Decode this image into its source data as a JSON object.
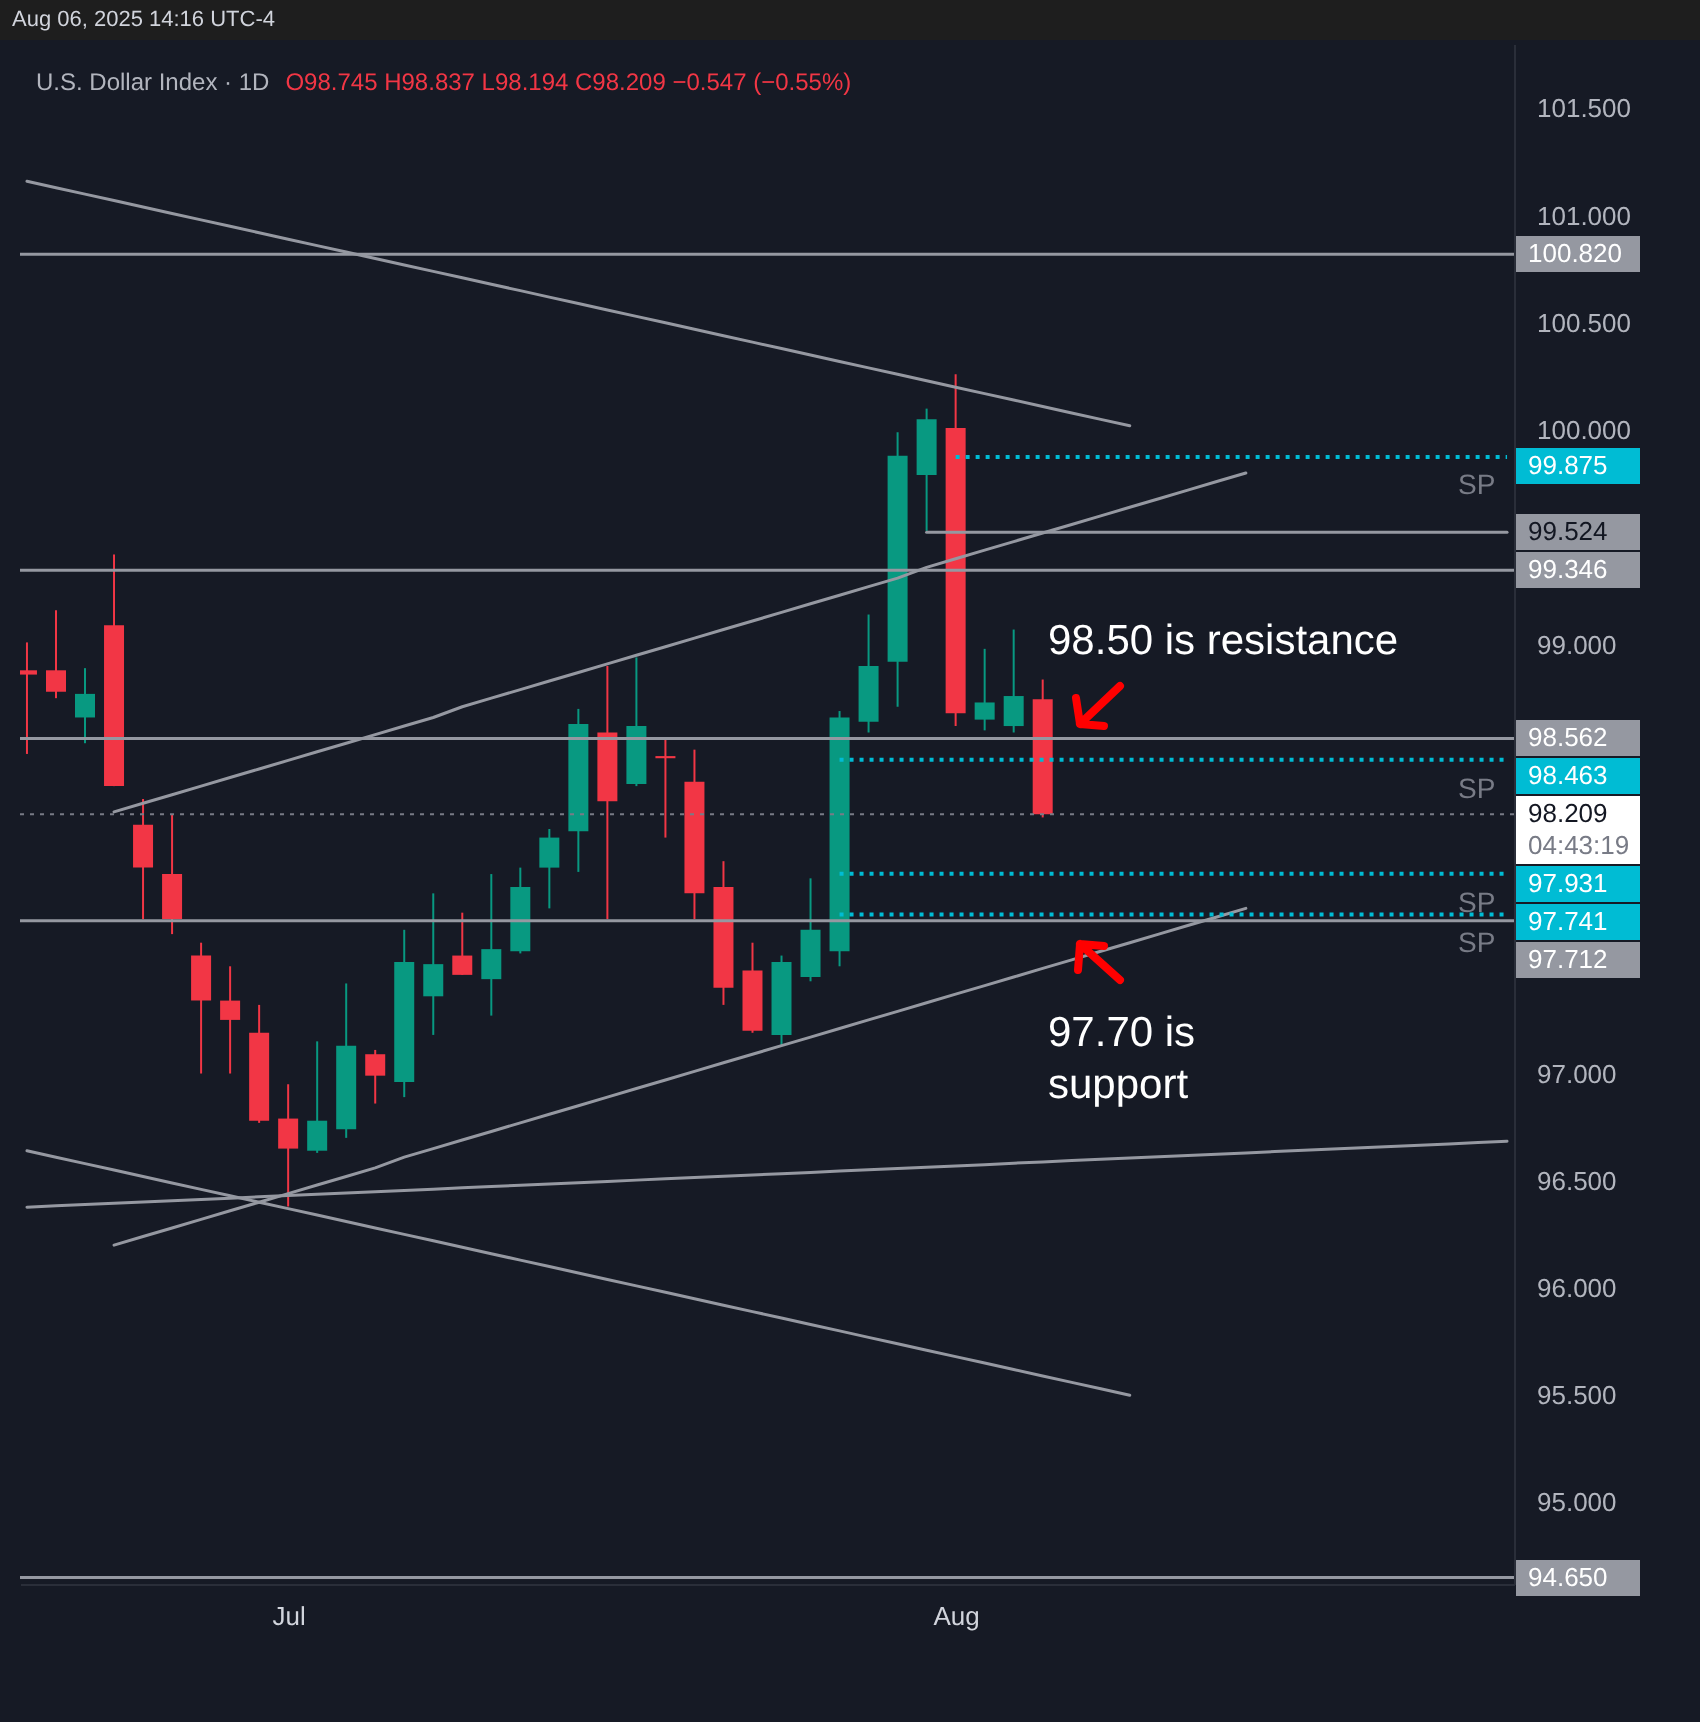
{
  "chart_data": {
    "type": "candlestick",
    "title": "U.S. Dollar Index · 1D",
    "subtitle": "O98.745 H98.837 L98.194 C98.209 −0.547 (−0.55%)",
    "categories": [
      null,
      null,
      null,
      null,
      null,
      null,
      null,
      null,
      null,
      "Jul",
      null,
      null,
      null,
      null,
      null,
      null,
      null,
      null,
      null,
      null,
      null,
      null,
      null,
      null,
      null,
      null,
      null,
      null,
      null,
      null,
      null,
      null,
      "Aug",
      null,
      null,
      null,
      null,
      null,
      null,
      null,
      null,
      null,
      null,
      null,
      null,
      null,
      null,
      null,
      null,
      null,
      null,
      null
    ],
    "ohlc": [
      [
        98.88,
        99.01,
        98.49,
        98.86
      ],
      [
        98.88,
        99.16,
        98.75,
        98.78
      ],
      [
        98.66,
        98.89,
        98.54,
        98.77
      ],
      [
        99.09,
        99.42,
        98.34,
        98.34
      ],
      [
        98.16,
        98.28,
        97.72,
        97.96
      ],
      [
        97.93,
        98.21,
        97.65,
        97.72
      ],
      [
        97.55,
        97.61,
        97.0,
        97.34
      ],
      [
        97.34,
        97.5,
        97.0,
        97.25
      ],
      [
        97.19,
        97.32,
        96.77,
        96.78
      ],
      [
        96.79,
        96.95,
        96.38,
        96.65
      ],
      [
        96.64,
        97.15,
        96.63,
        96.78
      ],
      [
        96.74,
        97.42,
        96.7,
        97.13
      ],
      [
        97.09,
        97.11,
        96.86,
        96.99
      ],
      [
        96.96,
        97.67,
        96.89,
        97.52
      ],
      [
        97.36,
        97.84,
        97.18,
        97.51
      ],
      [
        97.55,
        97.75,
        97.46,
        97.46
      ],
      [
        97.44,
        97.93,
        97.27,
        97.58
      ],
      [
        97.57,
        97.96,
        97.56,
        97.87
      ],
      [
        97.96,
        98.14,
        97.77,
        98.1
      ],
      [
        98.13,
        98.7,
        97.94,
        98.63
      ],
      [
        98.59,
        98.9,
        97.72,
        98.27
      ],
      [
        98.35,
        98.94,
        98.34,
        98.62
      ],
      [
        98.48,
        98.56,
        98.1,
        98.47
      ],
      [
        98.36,
        98.51,
        97.72,
        97.84
      ],
      [
        97.87,
        97.99,
        97.32,
        97.4
      ],
      [
        97.48,
        97.61,
        97.19,
        97.2
      ],
      [
        97.18,
        97.55,
        97.13,
        97.52
      ],
      [
        97.45,
        97.91,
        97.43,
        97.67
      ],
      [
        97.57,
        98.69,
        97.5,
        98.66
      ],
      [
        98.64,
        99.14,
        98.59,
        98.9
      ],
      [
        98.92,
        99.99,
        98.71,
        99.88
      ],
      [
        99.79,
        100.1,
        99.53,
        100.05
      ],
      [
        100.01,
        100.26,
        98.62,
        98.68
      ],
      [
        98.65,
        98.98,
        98.6,
        98.73
      ],
      [
        98.62,
        99.07,
        98.59,
        98.76
      ],
      [
        98.745,
        98.837,
        98.194,
        98.209
      ],
      null,
      null,
      null,
      null,
      null,
      null,
      null,
      null,
      null,
      null,
      null,
      null,
      null,
      null,
      null,
      null
    ],
    "colors": [
      "#f23645",
      "#f23645",
      "#089981",
      "#f23645",
      "#f23645",
      "#f23645",
      "#f23645",
      "#f23645",
      "#f23645",
      "#f23645",
      "#089981",
      "#089981",
      "#f23645",
      "#089981",
      "#089981",
      "#f23645",
      "#089981",
      "#089981",
      "#089981",
      "#089981",
      "#f23645",
      "#089981",
      "#f23645",
      "#f23645",
      "#f23645",
      "#f23645",
      "#089981",
      "#089981",
      "#089981",
      "#089981",
      "#089981",
      "#089981",
      "#f23645",
      "#089981",
      "#089981",
      "#f23645",
      null,
      null,
      null,
      null,
      null,
      null,
      null,
      null,
      null,
      null,
      null,
      null,
      null,
      null,
      null,
      null
    ],
    "ylim": [
      94.62,
      101.8
    ],
    "yticks": [
      {
        "value": 95,
        "label": "95.000"
      },
      {
        "value": 95.5,
        "label": "95.500"
      },
      {
        "value": 96,
        "label": "96.000"
      },
      {
        "value": 96.5,
        "label": "96.500"
      },
      {
        "value": 97,
        "label": "97.000"
      },
      {
        "value": 99,
        "label": "99.000"
      },
      {
        "value": 100,
        "label": "100.000"
      },
      {
        "value": 100.5,
        "label": "100.500"
      },
      {
        "value": 101,
        "label": "101.000"
      },
      {
        "value": 101.5,
        "label": "101.500"
      }
    ],
    "series": [
      {
        "type": "line",
        "color": "#9598a1",
        "line_style": "solid",
        "values": [
          101.16,
          101.13,
          101.1,
          101.07,
          101.04,
          101.01,
          100.98,
          100.95,
          100.92,
          100.89,
          100.86,
          100.83,
          100.8,
          100.77,
          100.74,
          100.71,
          100.68,
          100.65,
          100.62,
          100.59,
          100.56,
          100.53,
          100.5,
          100.47,
          100.44,
          100.41,
          100.38,
          100.35,
          100.32,
          100.29,
          100.26,
          100.23,
          100.2,
          100.17,
          100.14,
          100.11,
          100.08,
          100.05,
          100.02,
          null,
          null,
          null,
          null,
          null,
          null,
          null,
          null,
          null,
          null,
          null,
          null,
          null
        ]
      },
      {
        "type": "line",
        "color": "#9598a1",
        "line_style": "solid",
        "values": [
          null,
          null,
          null,
          98.22,
          98.26,
          98.3,
          98.34,
          98.38,
          98.42,
          98.46,
          98.5,
          98.54,
          98.58,
          98.62,
          98.66,
          98.71,
          98.75,
          98.79,
          98.83,
          98.87,
          98.91,
          98.95,
          98.99,
          99.03,
          99.07,
          99.11,
          99.15,
          99.19,
          99.23,
          99.27,
          99.31,
          99.36,
          99.4,
          99.44,
          99.48,
          99.52,
          99.56,
          99.6,
          99.64,
          99.68,
          99.72,
          99.76,
          99.8,
          null,
          null,
          null,
          null,
          null,
          null,
          null,
          null,
          null
        ]
      },
      {
        "type": "line",
        "color": "#9598a1",
        "line_style": "solid",
        "values": [
          null,
          null,
          null,
          96.2,
          96.24,
          96.28,
          96.32,
          96.36,
          96.4,
          96.44,
          96.48,
          96.52,
          96.56,
          96.61,
          96.65,
          96.69,
          96.73,
          96.77,
          96.81,
          96.85,
          96.89,
          96.93,
          96.97,
          97.01,
          97.05,
          97.09,
          97.13,
          97.17,
          97.21,
          97.25,
          97.29,
          97.33,
          97.37,
          97.41,
          97.45,
          97.49,
          97.53,
          97.57,
          97.61,
          97.65,
          97.69,
          97.73,
          97.77,
          null,
          null,
          null,
          null,
          null,
          null,
          null,
          null,
          null
        ]
      },
      {
        "type": "line",
        "color": "#9598a1",
        "line_style": "solid",
        "values": [
          96.377,
          96.383,
          96.389,
          96.395,
          96.401,
          96.407,
          96.413,
          96.419,
          96.425,
          96.431,
          96.437,
          96.443,
          96.449,
          96.455,
          96.461,
          96.467,
          96.473,
          96.479,
          96.485,
          96.491,
          96.497,
          96.503,
          96.509,
          96.515,
          96.521,
          96.527,
          96.533,
          96.539,
          96.545,
          96.551,
          96.557,
          96.563,
          96.569,
          96.575,
          96.582,
          96.588,
          96.594,
          96.6,
          96.606,
          96.612,
          96.618,
          96.624,
          96.63,
          96.636,
          96.642,
          96.648,
          96.654,
          96.66,
          96.666,
          96.672,
          96.678,
          96.684
        ]
      },
      {
        "type": "line",
        "color": "#9598a1",
        "line_style": "solid",
        "values": [
          96.64,
          96.61,
          96.58,
          96.55,
          96.52,
          96.49,
          96.46,
          96.43,
          96.4,
          96.37,
          96.34,
          96.31,
          96.28,
          96.25,
          96.22,
          96.19,
          96.16,
          96.13,
          96.1,
          96.07,
          96.04,
          96.01,
          95.98,
          95.95,
          95.92,
          95.89,
          95.86,
          95.83,
          95.8,
          95.77,
          95.74,
          95.71,
          95.68,
          95.65,
          95.62,
          95.59,
          95.56,
          95.53,
          95.5,
          null,
          null,
          null,
          null,
          null,
          null,
          null,
          null,
          null,
          null,
          null,
          null,
          null
        ]
      },
      {
        "type": "line",
        "color": "#9598a1",
        "line_style": "solid",
        "values": [
          null,
          null,
          null,
          null,
          null,
          null,
          null,
          null,
          null,
          null,
          null,
          null,
          null,
          null,
          null,
          null,
          null,
          null,
          null,
          null,
          null,
          null,
          null,
          null,
          null,
          null,
          null,
          null,
          null,
          null,
          null,
          99.524,
          99.524,
          99.524,
          99.524,
          99.524,
          99.524,
          99.524,
          99.524,
          99.524,
          99.524,
          99.524,
          99.524,
          99.524,
          99.524,
          99.524,
          99.524,
          99.524,
          99.524,
          99.524,
          99.524,
          99.524
        ],
        "value_labels": [
          null,
          null,
          null,
          null,
          null,
          null,
          null,
          null,
          null,
          null,
          null,
          null,
          null,
          null,
          null,
          null,
          null,
          null,
          null,
          null,
          null,
          null,
          null,
          null,
          null,
          null,
          null,
          null,
          null,
          null,
          null,
          null,
          null,
          null,
          null,
          null,
          null,
          null,
          null,
          null,
          null,
          null,
          null,
          null,
          null,
          null,
          null,
          null,
          null,
          null,
          null,
          "99.524"
        ]
      },
      {
        "type": "line",
        "color": "#00bcd4",
        "line_style": "dotted",
        "values": [
          null,
          null,
          null,
          null,
          null,
          null,
          null,
          null,
          null,
          null,
          null,
          null,
          null,
          null,
          null,
          null,
          null,
          null,
          null,
          null,
          null,
          null,
          null,
          null,
          null,
          null,
          null,
          null,
          null,
          null,
          null,
          null,
          99.875,
          99.875,
          99.875,
          99.875,
          99.875,
          99.875,
          99.875,
          99.875,
          99.875,
          99.875,
          99.875,
          99.875,
          99.875,
          99.875,
          99.875,
          99.875,
          99.875,
          99.875,
          99.875,
          99.875
        ],
        "value_labels": [
          null,
          null,
          null,
          null,
          null,
          null,
          null,
          null,
          null,
          null,
          null,
          null,
          null,
          null,
          null,
          null,
          null,
          null,
          null,
          null,
          null,
          null,
          null,
          null,
          null,
          null,
          null,
          null,
          null,
          null,
          null,
          null,
          null,
          null,
          null,
          null,
          null,
          null,
          null,
          null,
          null,
          null,
          null,
          null,
          null,
          null,
          null,
          null,
          null,
          null,
          null,
          "99.875"
        ]
      },
      {
        "type": "line",
        "color": "#00bcd4",
        "line_style": "dotted",
        "values": [
          null,
          null,
          null,
          null,
          null,
          null,
          null,
          null,
          null,
          null,
          null,
          null,
          null,
          null,
          null,
          null,
          null,
          null,
          null,
          null,
          null,
          null,
          null,
          null,
          null,
          null,
          null,
          null,
          98.463,
          98.463,
          98.463,
          98.463,
          98.463,
          98.463,
          98.463,
          98.463,
          98.463,
          98.463,
          98.463,
          98.463,
          98.463,
          98.463,
          98.463,
          98.463,
          98.463,
          98.463,
          98.463,
          98.463,
          98.463,
          98.463,
          98.463,
          98.463
        ],
        "value_labels": [
          null,
          null,
          null,
          null,
          null,
          null,
          null,
          null,
          null,
          null,
          null,
          null,
          null,
          null,
          null,
          null,
          null,
          null,
          null,
          null,
          null,
          null,
          null,
          null,
          null,
          null,
          null,
          null,
          null,
          null,
          null,
          null,
          null,
          null,
          null,
          null,
          null,
          null,
          null,
          null,
          null,
          null,
          null,
          null,
          null,
          null,
          null,
          null,
          null,
          null,
          null,
          "98.463"
        ]
      },
      {
        "type": "line",
        "color": "#00bcd4",
        "line_style": "dotted",
        "values": [
          null,
          null,
          null,
          null,
          null,
          null,
          null,
          null,
          null,
          null,
          null,
          null,
          null,
          null,
          null,
          null,
          null,
          null,
          null,
          null,
          null,
          null,
          null,
          null,
          null,
          null,
          null,
          null,
          97.931,
          97.931,
          97.931,
          97.931,
          97.931,
          97.931,
          97.931,
          97.931,
          97.931,
          97.931,
          97.931,
          97.931,
          97.931,
          97.931,
          97.931,
          97.931,
          97.931,
          97.931,
          97.931,
          97.931,
          97.931,
          97.931,
          97.931,
          97.931
        ],
        "value_labels": [
          null,
          null,
          null,
          null,
          null,
          null,
          null,
          null,
          null,
          null,
          null,
          null,
          null,
          null,
          null,
          null,
          null,
          null,
          null,
          null,
          null,
          null,
          null,
          null,
          null,
          null,
          null,
          null,
          null,
          null,
          null,
          null,
          null,
          null,
          null,
          null,
          null,
          null,
          null,
          null,
          null,
          null,
          null,
          null,
          null,
          null,
          null,
          null,
          null,
          null,
          null,
          "97.931"
        ]
      },
      {
        "type": "line",
        "color": "#00bcd4",
        "line_style": "dotted",
        "values": [
          null,
          null,
          null,
          null,
          null,
          null,
          null,
          null,
          null,
          null,
          null,
          null,
          null,
          null,
          null,
          null,
          null,
          null,
          null,
          null,
          null,
          null,
          null,
          null,
          null,
          null,
          null,
          null,
          97.741,
          97.741,
          97.741,
          97.741,
          97.741,
          97.741,
          97.741,
          97.741,
          97.741,
          97.741,
          97.741,
          97.741,
          97.741,
          97.741,
          97.741,
          97.741,
          97.741,
          97.741,
          97.741,
          97.741,
          97.741,
          97.741,
          97.741,
          97.741
        ],
        "value_labels": [
          null,
          null,
          null,
          null,
          null,
          null,
          null,
          null,
          null,
          null,
          null,
          null,
          null,
          null,
          null,
          null,
          null,
          null,
          null,
          null,
          null,
          null,
          null,
          null,
          null,
          null,
          null,
          null,
          null,
          null,
          null,
          null,
          null,
          null,
          null,
          null,
          null,
          null,
          null,
          null,
          null,
          null,
          null,
          null,
          null,
          null,
          null,
          null,
          null,
          null,
          null,
          "97.741"
        ]
      }
    ],
    "ref_lines": [
      {
        "axis": "y",
        "value": 100.82,
        "label": "100.820",
        "color": "#9598a1",
        "line_style": "solid"
      },
      {
        "axis": "y",
        "value": 99.346,
        "label": "99.346",
        "color": "#9598a1",
        "line_style": "solid"
      },
      {
        "axis": "y",
        "value": 98.562,
        "label": "98.562",
        "color": "#9598a1",
        "line_style": "solid"
      },
      {
        "axis": "y",
        "value": 98.209,
        "label": "98.209",
        "color": "#787b86",
        "line_style": "dotted"
      },
      {
        "axis": "y",
        "value": 97.712,
        "label": "97.712",
        "color": "#9598a1",
        "line_style": "solid"
      },
      {
        "axis": "y",
        "value": 94.65,
        "label": "94.650",
        "color": "#9598a1",
        "line_style": "solid"
      }
    ],
    "annotations": [
      "Aug 06, 2025 14:16 UTC-4",
      "98.50 is resistance",
      "97.70 is\nsupport",
      "SP",
      "SP",
      "SP",
      "SP",
      "04:43:19"
    ]
  }
}
